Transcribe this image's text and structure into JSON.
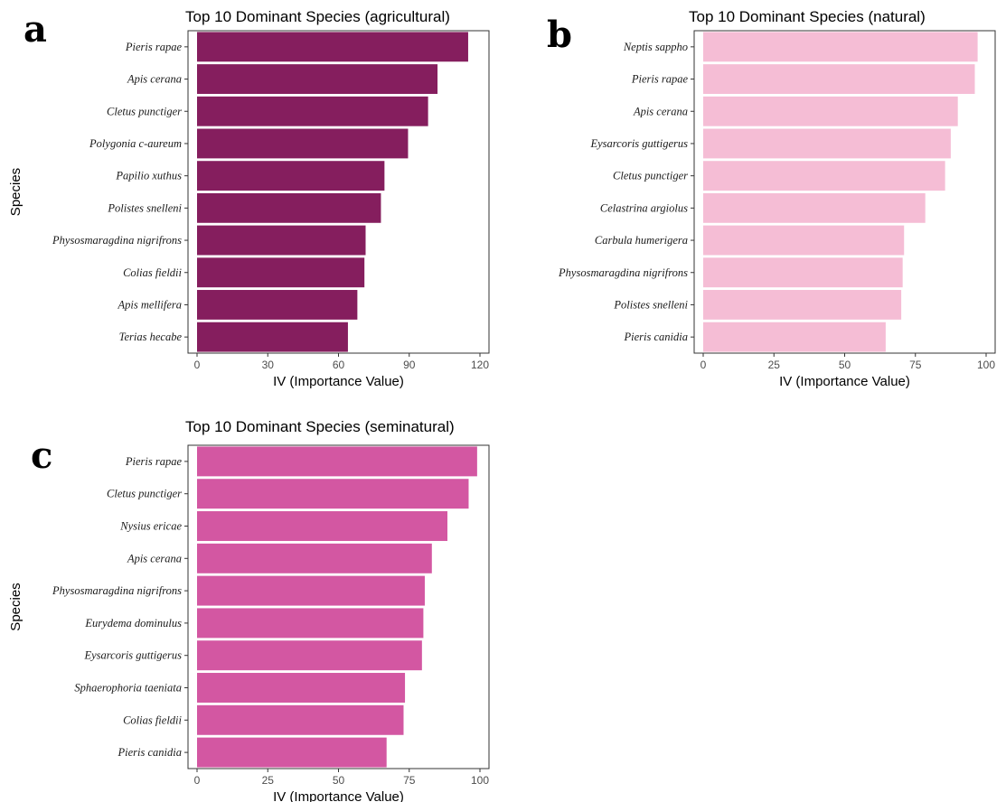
{
  "chart_data": [
    {
      "type": "bar",
      "orientation": "horizontal",
      "panel_label": "a",
      "title": "Top 10 Dominant Species (agricultural)",
      "xlabel": "IV (Importance Value)",
      "ylabel": "Species",
      "xlim": [
        0,
        120
      ],
      "xticks": [
        "0",
        "30",
        "60",
        "90",
        "120"
      ],
      "color": "#851E5E",
      "categories": [
        "Pieris rapae",
        "Apis cerana",
        "Cletus punctiger",
        "Polygonia c-aureum",
        "Papilio xuthus",
        "Polistes snelleni",
        "Physosmaragdina nigrifrons",
        "Colias fieldii",
        "Apis mellifera",
        "Terias hecabe"
      ],
      "values": [
        115,
        102,
        98,
        89.5,
        79.5,
        78,
        71.5,
        71,
        68,
        64
      ]
    },
    {
      "type": "bar",
      "orientation": "horizontal",
      "panel_label": "b",
      "title": "Top 10 Dominant Species (natural)",
      "xlabel": "IV (Importance Value)",
      "ylabel": "",
      "xlim": [
        0,
        100
      ],
      "xticks": [
        "0",
        "25",
        "50",
        "75",
        "100"
      ],
      "color": "#F5BDD5",
      "categories": [
        "Neptis sappho",
        "Pieris rapae",
        "Apis cerana",
        "Eysarcoris guttigerus",
        "Cletus punctiger",
        "Celastrina argiolus",
        "Carbula humerigera",
        "Physosmaragdina nigrifrons",
        "Polistes snelleni",
        "Pieris canidia"
      ],
      "values": [
        97,
        96,
        90,
        87.5,
        85.5,
        78.5,
        71,
        70.5,
        70,
        64.5
      ]
    },
    {
      "type": "bar",
      "orientation": "horizontal",
      "panel_label": "c",
      "title": "Top 10 Dominant Species (seminatural)",
      "xlabel": "IV (Importance Value)",
      "ylabel": "Species",
      "xlim": [
        0,
        100
      ],
      "xticks": [
        "0",
        "25",
        "50",
        "75",
        "100"
      ],
      "color": "#D357A2",
      "categories": [
        "Pieris rapae",
        "Cletus punctiger",
        "Nysius ericae",
        "Apis cerana",
        "Physosmaragdina nigrifrons",
        "Eurydema dominulus",
        "Eysarcoris guttigerus",
        "Sphaerophoria taeniata",
        "Colias fieldii",
        "Pieris canidia"
      ],
      "values": [
        99,
        96,
        88.5,
        83,
        80.5,
        80,
        79.5,
        73.5,
        73,
        67
      ]
    }
  ]
}
